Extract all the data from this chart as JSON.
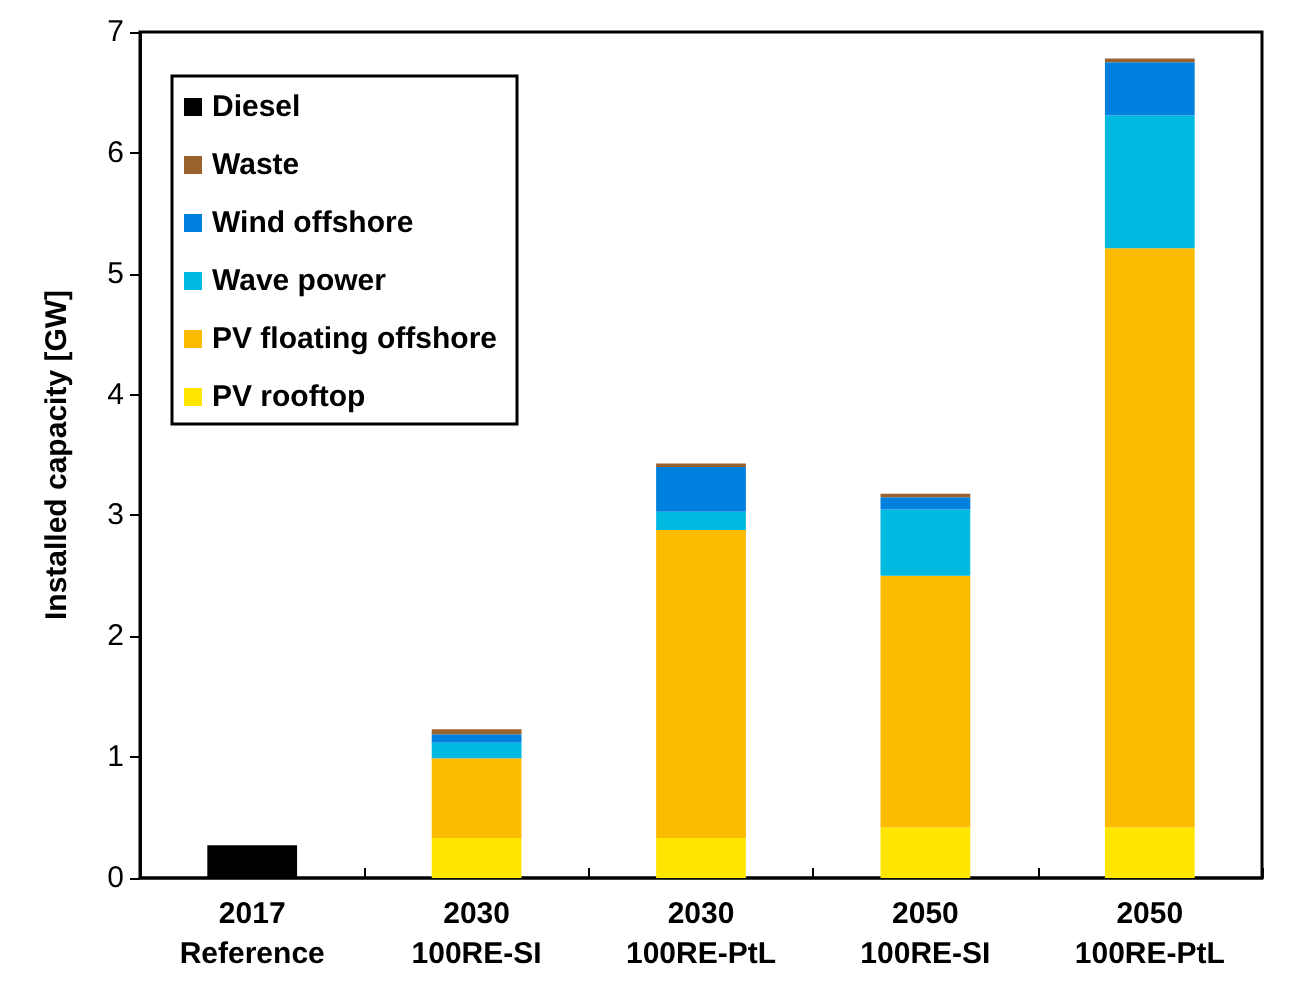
{
  "chart_data": {
    "type": "bar",
    "stacked": true,
    "ylabel": "Installed capacity [GW]",
    "categories": [
      "2017\nReference",
      "2030\n100RE-SI",
      "2030\n100RE-PtL",
      "2050\n100RE-SI",
      "2050\n100RE-PtL"
    ],
    "series": [
      {
        "name": "PV rooftop",
        "color": "#ffe600",
        "values": [
          null,
          0.33,
          0.33,
          0.42,
          0.42
        ]
      },
      {
        "name": "PV floating offshore",
        "color": "#fdbb00",
        "values": [
          null,
          0.66,
          2.55,
          2.08,
          4.79
        ]
      },
      {
        "name": "Wave power",
        "color": "#00b9e0",
        "values": [
          null,
          0.13,
          0.15,
          0.55,
          1.1
        ]
      },
      {
        "name": "Wind offshore",
        "color": "#0080de",
        "values": [
          null,
          0.07,
          0.37,
          0.1,
          0.44
        ]
      },
      {
        "name": "Waste",
        "color": "#99622e",
        "values": [
          null,
          0.04,
          0.03,
          0.03,
          0.03
        ]
      },
      {
        "name": "Diesel",
        "color": "#000000",
        "values": [
          0.27,
          null,
          null,
          null,
          null
        ]
      }
    ],
    "ylim": [
      0,
      7
    ],
    "yticks": [
      0,
      1,
      2,
      3,
      4,
      5,
      6,
      7
    ],
    "grid": false,
    "legend": "top left"
  }
}
